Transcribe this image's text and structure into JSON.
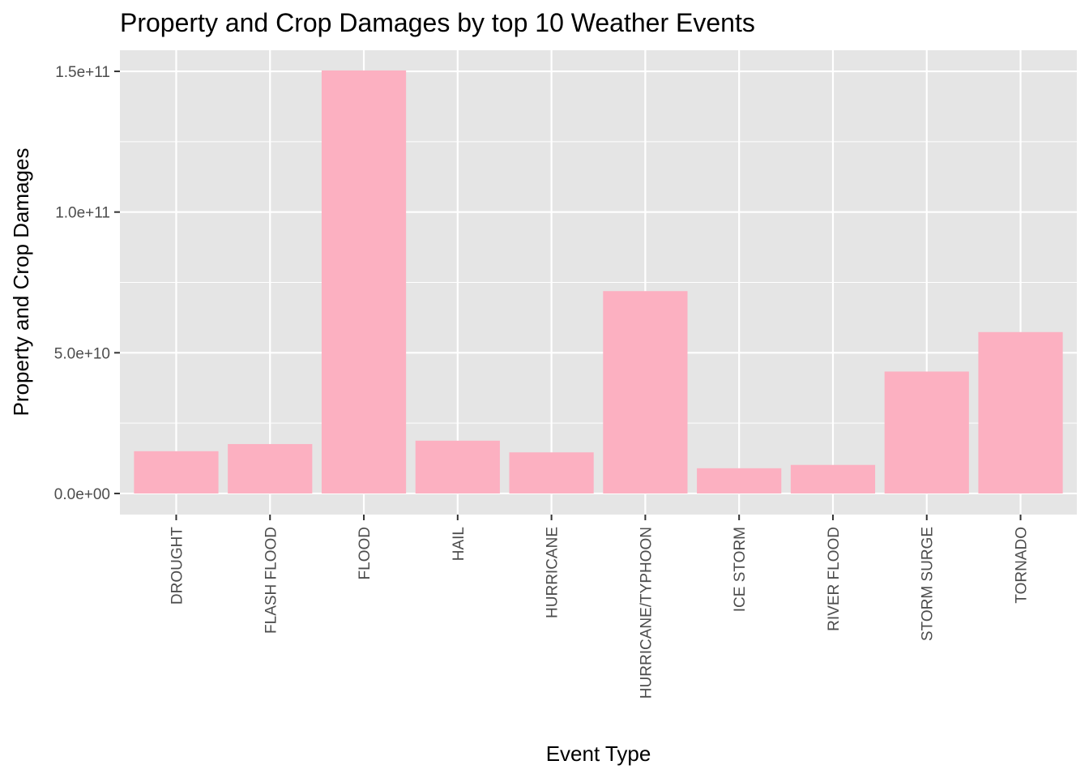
{
  "chart_data": {
    "type": "bar",
    "title": "Property and Crop Damages by top 10 Weather Events",
    "xlabel": "Event Type",
    "ylabel": "Property and Crop Damages",
    "categories": [
      "DROUGHT",
      "FLASH FLOOD",
      "FLOOD",
      "HAIL",
      "HURRICANE",
      "HURRICANE/TYPHOON",
      "ICE STORM",
      "RIVER FLOOD",
      "STORM SURGE",
      "TORNADO"
    ],
    "values": [
      15018672000,
      17562129167,
      150319678257,
      18758221521,
      14610229010,
      71913712800,
      8967041360,
      10148404500,
      43323541000,
      57352114049
    ],
    "ylim": [
      -7500000000,
      157500000000
    ],
    "yticks": [
      0,
      50000000000,
      100000000000,
      150000000000
    ],
    "ytick_labels": [
      "0.0e+00",
      "5.0e+10",
      "1.0e+11",
      "1.5e+11"
    ],
    "grid": true,
    "bar_color": "#fcb0c1",
    "panel_background": "#e5e5e5",
    "grid_color": "#ffffff",
    "legend": "none"
  }
}
